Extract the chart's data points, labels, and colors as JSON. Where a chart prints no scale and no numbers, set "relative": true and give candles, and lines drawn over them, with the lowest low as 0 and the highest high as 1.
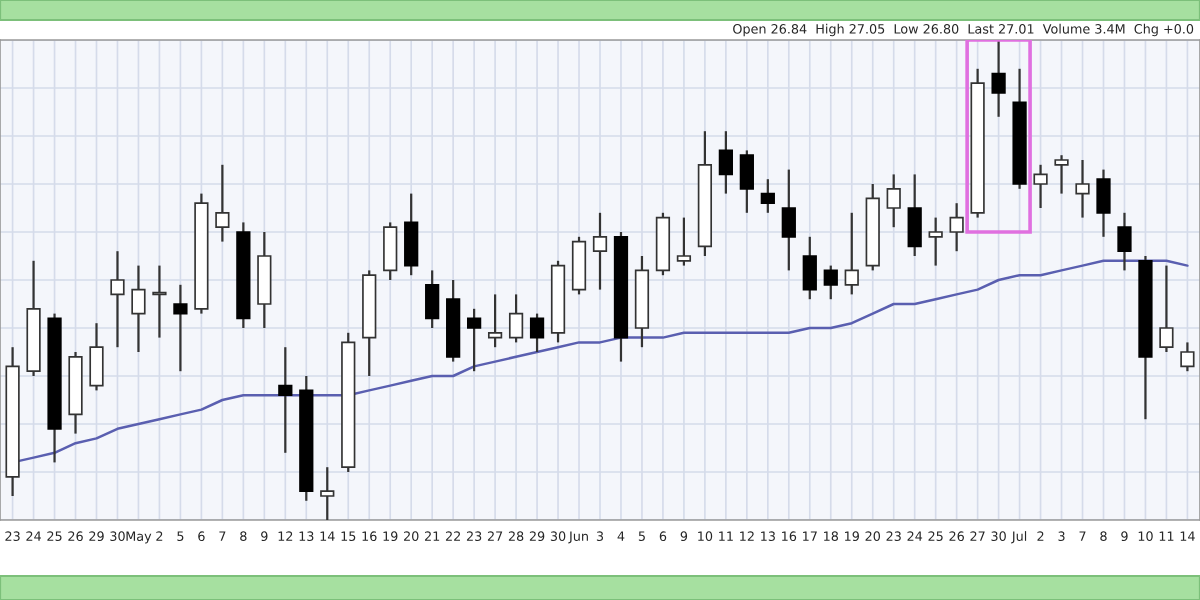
{
  "chart_data": {
    "type": "candlestick",
    "relative": true,
    "categories": [
      "23",
      "24",
      "25",
      "26",
      "29",
      "30",
      "May",
      "2",
      "5",
      "6",
      "7",
      "8",
      "9",
      "12",
      "13",
      "14",
      "15",
      "16",
      "19",
      "20",
      "21",
      "22",
      "23",
      "27",
      "28",
      "29",
      "30",
      "Jun",
      "3",
      "4",
      "5",
      "6",
      "9",
      "10",
      "11",
      "12",
      "13",
      "16",
      "17",
      "18",
      "19",
      "20",
      "23",
      "24",
      "25",
      "26",
      "27",
      "30",
      "Jul",
      "2",
      "3",
      "7",
      "8",
      "9",
      "10",
      "11",
      "14"
    ],
    "ohlc": [
      [
        0.09,
        0.36,
        0.05,
        0.32
      ],
      [
        0.31,
        0.54,
        0.3,
        0.44
      ],
      [
        0.42,
        0.43,
        0.12,
        0.19
      ],
      [
        0.22,
        0.35,
        0.18,
        0.34
      ],
      [
        0.28,
        0.41,
        0.27,
        0.36
      ],
      [
        0.47,
        0.56,
        0.36,
        0.5
      ],
      [
        0.43,
        0.53,
        0.35,
        0.48
      ],
      [
        0.47,
        0.53,
        0.38,
        0.47
      ],
      [
        0.45,
        0.49,
        0.31,
        0.43
      ],
      [
        0.44,
        0.68,
        0.43,
        0.66
      ],
      [
        0.61,
        0.74,
        0.58,
        0.64
      ],
      [
        0.6,
        0.62,
        0.4,
        0.42
      ],
      [
        0.45,
        0.6,
        0.4,
        0.55
      ],
      [
        0.28,
        0.36,
        0.14,
        0.26
      ],
      [
        0.27,
        0.3,
        0.04,
        0.06
      ],
      [
        0.05,
        0.11,
        0.0,
        0.06
      ],
      [
        0.11,
        0.39,
        0.1,
        0.37
      ],
      [
        0.38,
        0.52,
        0.3,
        0.51
      ],
      [
        0.52,
        0.62,
        0.5,
        0.61
      ],
      [
        0.62,
        0.68,
        0.51,
        0.53
      ],
      [
        0.49,
        0.52,
        0.4,
        0.42
      ],
      [
        0.46,
        0.5,
        0.33,
        0.34
      ],
      [
        0.42,
        0.44,
        0.31,
        0.4
      ],
      [
        0.38,
        0.47,
        0.36,
        0.39
      ],
      [
        0.38,
        0.47,
        0.37,
        0.43
      ],
      [
        0.42,
        0.43,
        0.35,
        0.38
      ],
      [
        0.39,
        0.54,
        0.37,
        0.53
      ],
      [
        0.48,
        0.59,
        0.47,
        0.58
      ],
      [
        0.56,
        0.64,
        0.48,
        0.59
      ],
      [
        0.59,
        0.6,
        0.33,
        0.38
      ],
      [
        0.4,
        0.55,
        0.36,
        0.52
      ],
      [
        0.52,
        0.64,
        0.51,
        0.63
      ],
      [
        0.54,
        0.63,
        0.53,
        0.55
      ],
      [
        0.57,
        0.81,
        0.55,
        0.74
      ],
      [
        0.77,
        0.81,
        0.68,
        0.72
      ],
      [
        0.76,
        0.77,
        0.64,
        0.69
      ],
      [
        0.68,
        0.71,
        0.64,
        0.66
      ],
      [
        0.65,
        0.73,
        0.52,
        0.59
      ],
      [
        0.55,
        0.59,
        0.46,
        0.48
      ],
      [
        0.52,
        0.53,
        0.46,
        0.49
      ],
      [
        0.49,
        0.64,
        0.47,
        0.52
      ],
      [
        0.53,
        0.7,
        0.52,
        0.67
      ],
      [
        0.65,
        0.72,
        0.61,
        0.69
      ],
      [
        0.65,
        0.72,
        0.55,
        0.57
      ],
      [
        0.59,
        0.63,
        0.53,
        0.6
      ],
      [
        0.6,
        0.66,
        0.56,
        0.63
      ],
      [
        0.64,
        0.94,
        0.63,
        0.91
      ],
      [
        0.93,
        1.0,
        0.84,
        0.89
      ],
      [
        0.87,
        0.94,
        0.69,
        0.7
      ],
      [
        0.7,
        0.74,
        0.65,
        0.72
      ],
      [
        0.74,
        0.76,
        0.68,
        0.75
      ],
      [
        0.68,
        0.75,
        0.63,
        0.7
      ],
      [
        0.71,
        0.73,
        0.59,
        0.64
      ],
      [
        0.61,
        0.64,
        0.52,
        0.56
      ],
      [
        0.54,
        0.55,
        0.21,
        0.34
      ],
      [
        0.36,
        0.53,
        0.35,
        0.4
      ],
      [
        0.32,
        0.37,
        0.31,
        0.35
      ]
    ],
    "series": [
      {
        "type": "line",
        "color": "#5a5fb0",
        "values": [
          0.12,
          0.13,
          0.14,
          0.16,
          0.17,
          0.19,
          0.2,
          0.21,
          0.22,
          0.23,
          0.25,
          0.26,
          0.26,
          0.26,
          0.26,
          0.26,
          0.26,
          0.27,
          0.28,
          0.29,
          0.3,
          0.3,
          0.32,
          0.33,
          0.34,
          0.35,
          0.36,
          0.37,
          0.37,
          0.38,
          0.38,
          0.38,
          0.39,
          0.39,
          0.39,
          0.39,
          0.39,
          0.39,
          0.4,
          0.4,
          0.41,
          0.43,
          0.45,
          0.45,
          0.46,
          0.47,
          0.48,
          0.5,
          0.51,
          0.51,
          0.52,
          0.53,
          0.54,
          0.54,
          0.54,
          0.54,
          0.53
        ]
      }
    ],
    "annotations": [
      "Open 26.84  High 27.05  Low 26.80  Last 27.01  Volume 3.4M  Chg +0.0"
    ],
    "grid": true
  }
}
